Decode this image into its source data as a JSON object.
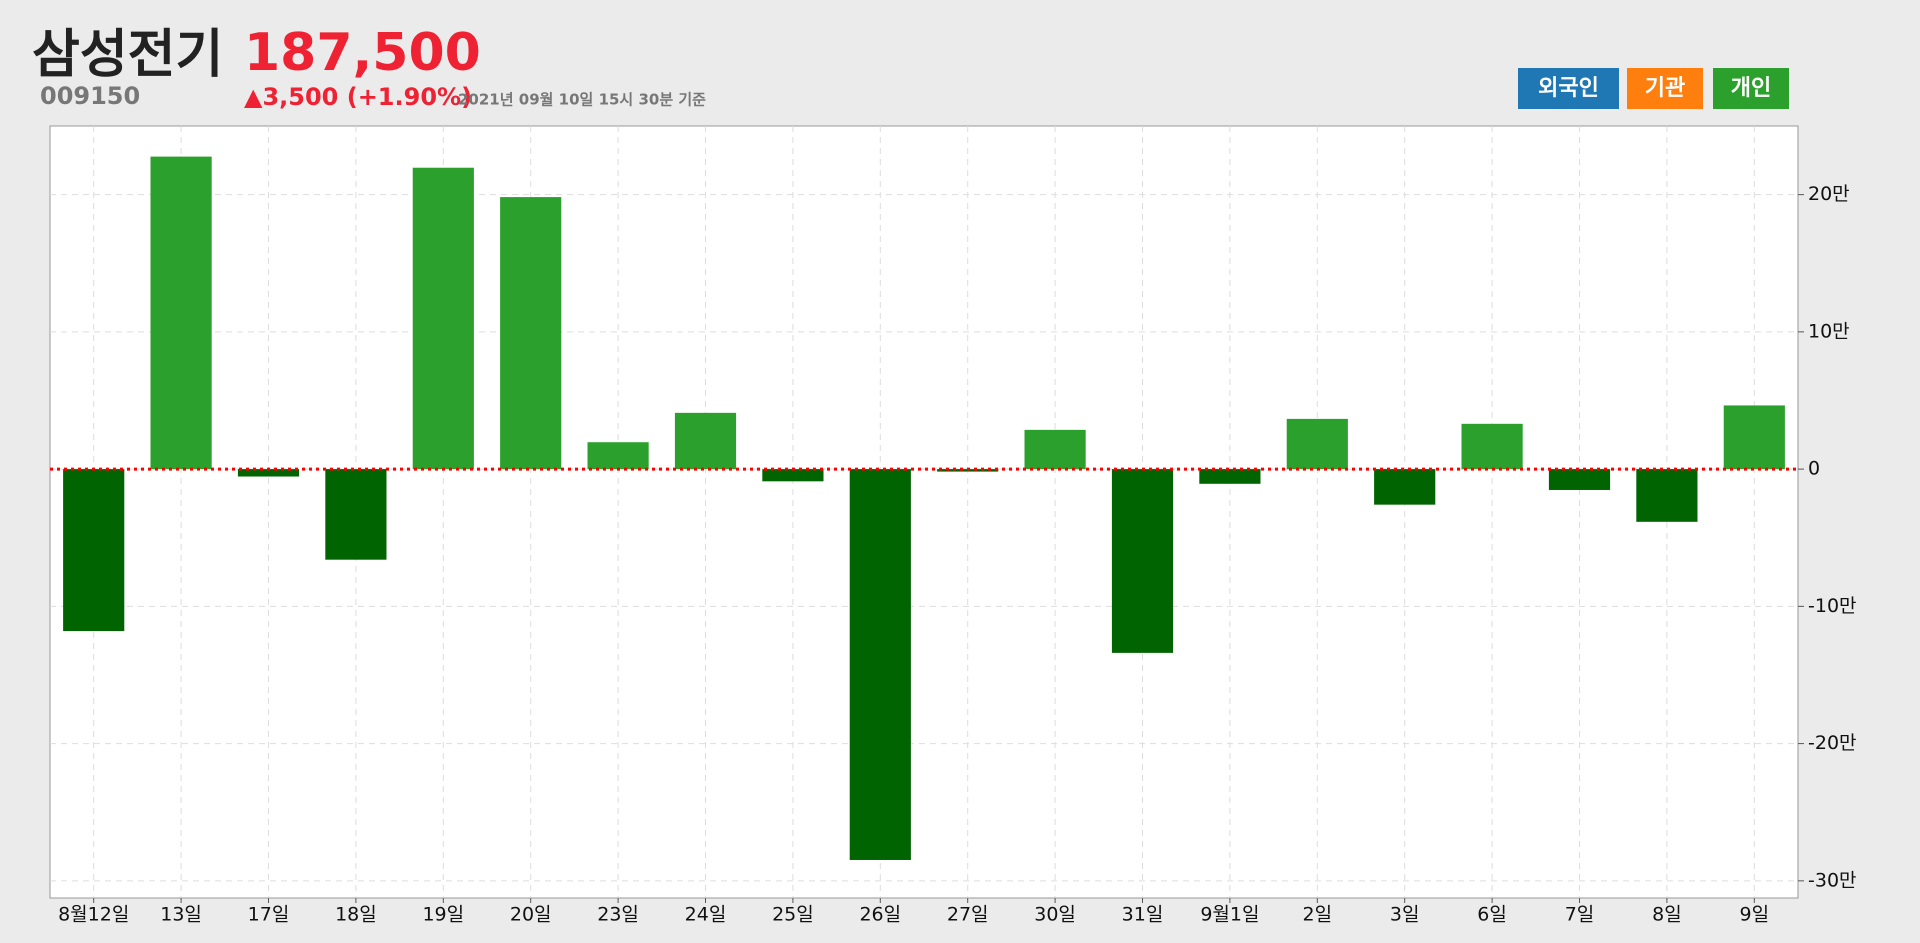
{
  "header": {
    "name": "삼성전기",
    "code": "009150",
    "price": "187,500",
    "change": "▲3,500 (+1.90%)",
    "timestamp": "2021년 09월 10일 15시 30분 기준"
  },
  "buttons": [
    {
      "label": "외국인",
      "color": "#1f77b4"
    },
    {
      "label": "기관",
      "color": "#ff7f0e"
    },
    {
      "label": "개인",
      "color": "#2ca02c"
    }
  ],
  "chart_data": {
    "type": "bar",
    "categories": [
      "8월12일",
      "13일",
      "17일",
      "18일",
      "19일",
      "20일",
      "23일",
      "24일",
      "25일",
      "26일",
      "27일",
      "30일",
      "31일",
      "9월1일",
      "2일",
      "3일",
      "6일",
      "7일",
      "8일",
      "9일"
    ],
    "values": [
      -118000,
      227700,
      -5400,
      -66000,
      219600,
      198200,
      19600,
      41000,
      -8900,
      -284800,
      -1800,
      28600,
      -133900,
      -10700,
      36600,
      -25900,
      33000,
      -15200,
      -38400,
      46400
    ],
    "positive_color": "#2ca02c",
    "negative_color": "#006400",
    "ylim": [
      -312500,
      250000
    ],
    "yticks": [
      {
        "value": -300000,
        "label": "-30만"
      },
      {
        "value": -200000,
        "label": "-20만"
      },
      {
        "value": -100000,
        "label": "-10만"
      },
      0,
      {
        "value": 100000,
        "label": "10만"
      },
      {
        "value": 200000,
        "label": "20만"
      }
    ],
    "grid": true,
    "zero_line_color": "#ff0000"
  }
}
